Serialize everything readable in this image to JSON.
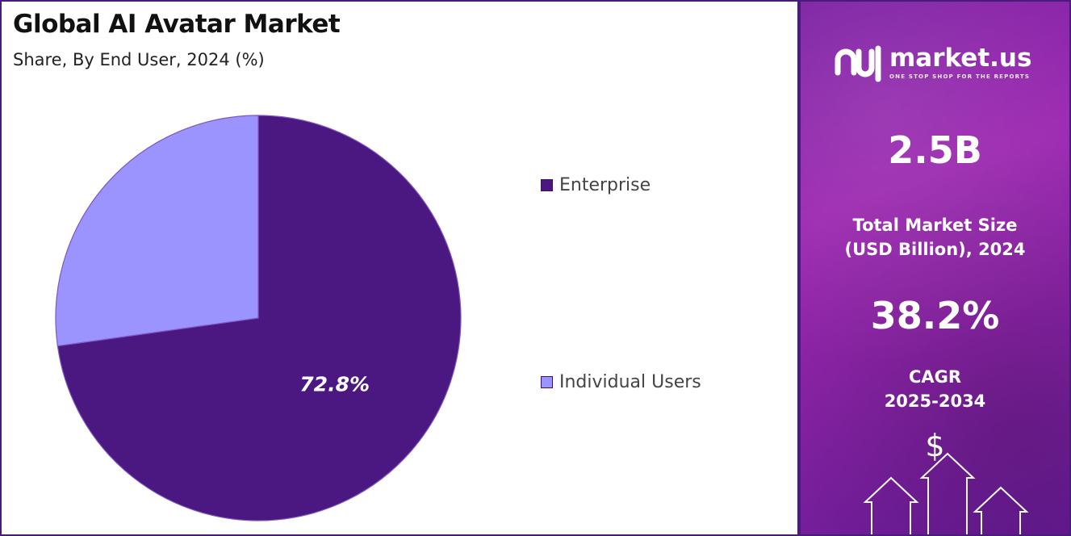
{
  "header": {
    "title": "Global AI Avatar Market",
    "subtitle": "Share, By End User, 2024 (%)"
  },
  "chart_data": {
    "type": "pie",
    "title": "Global AI Avatar Market",
    "subtitle": "Share, By End User, 2024 (%)",
    "slices": [
      {
        "label": "Enterprise",
        "value": 72.8,
        "color": "#4b1781",
        "data_label": "72.8%"
      },
      {
        "label": "Individual Users",
        "value": 27.2,
        "color": "#9b94ff",
        "data_label": ""
      }
    ],
    "legend_position": "right"
  },
  "legend": {
    "items": [
      {
        "label": "Enterprise",
        "color": "#4b1781"
      },
      {
        "label": "Individual Users",
        "color": "#9b94ff"
      }
    ]
  },
  "sidebar": {
    "brand": {
      "name": "market.us",
      "tagline": "ONE STOP SHOP FOR THE REPORTS",
      "icon": "market-us-logo-icon"
    },
    "market_size_value": "2.5B",
    "market_size_label_line1": "Total Market Size",
    "market_size_label_line2": "(USD Billion), 2024",
    "cagr_value": "38.2%",
    "cagr_label_line1": "CAGR",
    "cagr_label_line2": "2025-2034",
    "currency_symbol": "$",
    "colors": {
      "panel": "#8e24aa",
      "accent": "#4a1c7a"
    }
  }
}
